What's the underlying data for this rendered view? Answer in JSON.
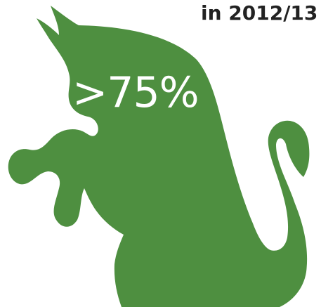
{
  "heading": {
    "text": "in 2012/13"
  },
  "graphic": {
    "icon": "cat-silhouette",
    "color": "#4e8f40"
  },
  "stat": {
    "value": ">75%"
  }
}
